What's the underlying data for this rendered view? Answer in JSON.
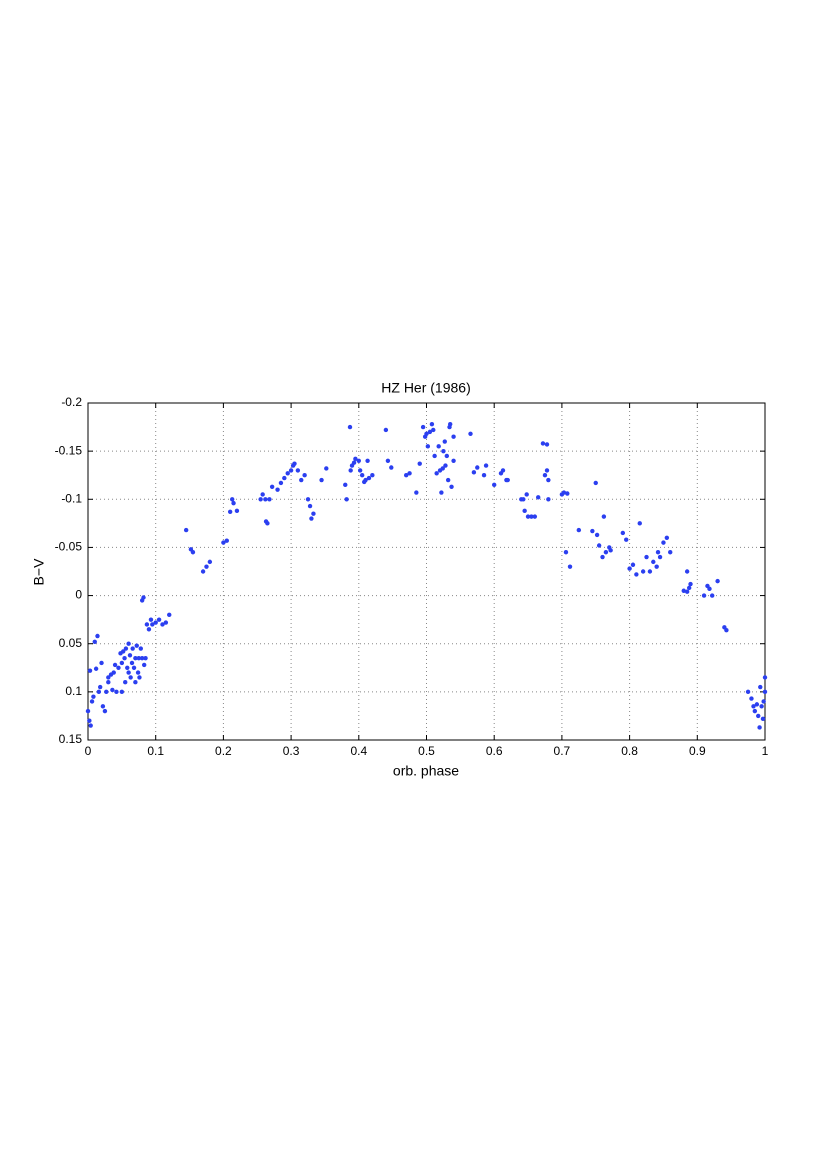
{
  "chart_data": {
    "type": "scatter",
    "title": "HZ Her (1986)",
    "x_label": "orb. phase",
    "y_label": "B−V",
    "xlim": [
      0,
      1
    ],
    "xticks": [
      0,
      0.1,
      0.2,
      0.3,
      0.4,
      0.5,
      0.6,
      0.7,
      0.8,
      0.9,
      1
    ],
    "ylim": [
      -0.2,
      0.15
    ],
    "yticks": [
      -0.2,
      -0.15,
      -0.1,
      -0.05,
      0,
      0.05,
      0.1,
      0.15
    ],
    "y_reversed": true,
    "grid": true,
    "color": "#2b3ff0",
    "x": [
      0.0,
      0.002,
      0.004,
      0.003,
      0.006,
      0.008,
      0.01,
      0.012,
      0.014,
      0.016,
      0.018,
      0.02,
      0.022,
      0.025,
      0.027,
      0.03,
      0.03,
      0.034,
      0.036,
      0.038,
      0.04,
      0.042,
      0.045,
      0.048,
      0.05,
      0.05,
      0.052,
      0.054,
      0.055,
      0.056,
      0.058,
      0.06,
      0.06,
      0.062,
      0.063,
      0.065,
      0.066,
      0.068,
      0.07,
      0.07,
      0.072,
      0.074,
      0.075,
      0.076,
      0.078,
      0.08,
      0.08,
      0.082,
      0.083,
      0.085,
      0.087,
      0.09,
      0.093,
      0.095,
      0.1,
      0.105,
      0.11,
      0.115,
      0.12,
      0.145,
      0.152,
      0.155,
      0.17,
      0.175,
      0.18,
      0.2,
      0.205,
      0.21,
      0.213,
      0.215,
      0.22,
      0.255,
      0.258,
      0.262,
      0.263,
      0.265,
      0.268,
      0.272,
      0.28,
      0.285,
      0.29,
      0.295,
      0.3,
      0.303,
      0.305,
      0.31,
      0.315,
      0.32,
      0.325,
      0.328,
      0.33,
      0.333,
      0.345,
      0.352,
      0.38,
      0.382,
      0.387,
      0.388,
      0.39,
      0.393,
      0.395,
      0.4,
      0.402,
      0.405,
      0.408,
      0.41,
      0.413,
      0.415,
      0.42,
      0.44,
      0.443,
      0.448,
      0.47,
      0.475,
      0.485,
      0.49,
      0.495,
      0.498,
      0.5,
      0.502,
      0.505,
      0.508,
      0.51,
      0.512,
      0.515,
      0.518,
      0.52,
      0.522,
      0.524,
      0.525,
      0.527,
      0.528,
      0.53,
      0.532,
      0.534,
      0.535,
      0.537,
      0.54,
      0.54,
      0.565,
      0.57,
      0.575,
      0.585,
      0.588,
      0.6,
      0.61,
      0.613,
      0.618,
      0.62,
      0.64,
      0.643,
      0.645,
      0.648,
      0.65,
      0.655,
      0.66,
      0.665,
      0.672,
      0.675,
      0.678,
      0.678,
      0.68,
      0.68,
      0.7,
      0.703,
      0.706,
      0.708,
      0.712,
      0.725,
      0.745,
      0.75,
      0.752,
      0.755,
      0.76,
      0.762,
      0.765,
      0.77,
      0.772,
      0.79,
      0.795,
      0.8,
      0.805,
      0.81,
      0.815,
      0.82,
      0.825,
      0.83,
      0.835,
      0.84,
      0.842,
      0.845,
      0.85,
      0.855,
      0.86,
      0.88,
      0.885,
      0.885,
      0.888,
      0.89,
      0.91,
      0.915,
      0.918,
      0.922,
      0.93,
      0.94,
      0.943,
      0.975,
      0.98,
      0.983,
      0.985,
      0.988,
      0.99,
      0.992,
      0.993,
      0.995,
      0.997,
      0.998,
      1.0,
      1.0
    ],
    "values": [
      0.12,
      0.13,
      0.135,
      0.078,
      0.11,
      0.105,
      0.048,
      0.076,
      0.042,
      0.1,
      0.095,
      0.07,
      0.115,
      0.12,
      0.1,
      0.09,
      0.085,
      0.082,
      0.098,
      0.08,
      0.072,
      0.1,
      0.075,
      0.06,
      0.07,
      0.1,
      0.058,
      0.065,
      0.09,
      0.055,
      0.075,
      0.05,
      0.08,
      0.062,
      0.085,
      0.07,
      0.055,
      0.075,
      0.065,
      0.09,
      0.052,
      0.08,
      0.065,
      0.085,
      0.055,
      0.065,
      0.005,
      0.002,
      0.072,
      0.065,
      0.03,
      0.035,
      0.025,
      0.03,
      0.028,
      0.025,
      0.03,
      0.028,
      0.02,
      -0.068,
      -0.048,
      -0.045,
      -0.025,
      -0.03,
      -0.035,
      -0.055,
      -0.057,
      -0.087,
      -0.1,
      -0.096,
      -0.088,
      -0.1,
      -0.105,
      -0.1,
      -0.077,
      -0.075,
      -0.1,
      -0.113,
      -0.11,
      -0.117,
      -0.122,
      -0.127,
      -0.13,
      -0.135,
      -0.137,
      -0.13,
      -0.12,
      -0.125,
      -0.1,
      -0.093,
      -0.08,
      -0.085,
      -0.12,
      -0.132,
      -0.115,
      -0.1,
      -0.175,
      -0.13,
      -0.135,
      -0.138,
      -0.142,
      -0.14,
      -0.13,
      -0.125,
      -0.118,
      -0.12,
      -0.14,
      -0.122,
      -0.125,
      -0.172,
      -0.14,
      -0.133,
      -0.125,
      -0.127,
      -0.107,
      -0.137,
      -0.175,
      -0.165,
      -0.168,
      -0.155,
      -0.17,
      -0.178,
      -0.172,
      -0.145,
      -0.127,
      -0.155,
      -0.13,
      -0.107,
      -0.132,
      -0.15,
      -0.16,
      -0.135,
      -0.145,
      -0.12,
      -0.175,
      -0.178,
      -0.113,
      -0.14,
      -0.165,
      -0.168,
      -0.128,
      -0.133,
      -0.125,
      -0.135,
      -0.115,
      -0.127,
      -0.13,
      -0.12,
      -0.12,
      -0.1,
      -0.1,
      -0.088,
      -0.105,
      -0.082,
      -0.082,
      -0.082,
      -0.102,
      -0.158,
      -0.125,
      -0.157,
      -0.13,
      -0.1,
      -0.12,
      -0.105,
      -0.107,
      -0.045,
      -0.106,
      -0.03,
      -0.068,
      -0.067,
      -0.117,
      -0.063,
      -0.052,
      -0.04,
      -0.082,
      -0.045,
      -0.05,
      -0.047,
      -0.065,
      -0.058,
      -0.028,
      -0.032,
      -0.022,
      -0.075,
      -0.025,
      -0.04,
      -0.025,
      -0.035,
      -0.03,
      -0.045,
      -0.04,
      -0.055,
      -0.06,
      -0.045,
      -0.005,
      -0.004,
      -0.025,
      -0.008,
      -0.012,
      0,
      -0.01,
      -0.007,
      0,
      -0.015,
      0.033,
      0.036,
      0.1,
      0.107,
      0.115,
      0.12,
      0.113,
      0.125,
      0.137,
      0.095,
      0.115,
      0.128,
      0.11,
      0.085,
      0.1
    ]
  }
}
